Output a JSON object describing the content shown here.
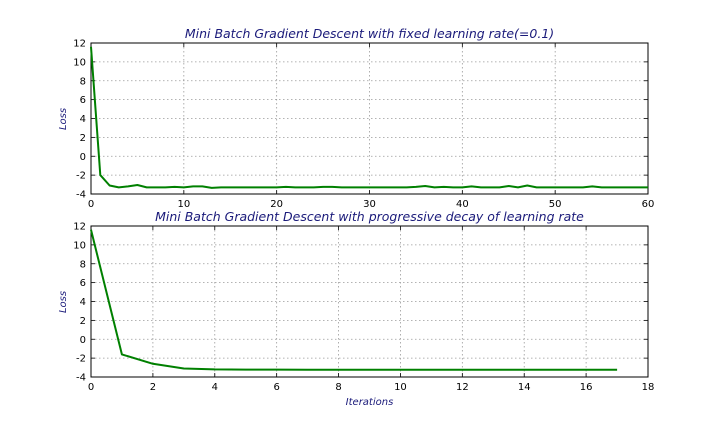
{
  "colors": {
    "line": "#008000",
    "title": "#1a1a7a"
  },
  "chart_data": [
    {
      "type": "line",
      "title": "Mini Batch Gradient Descent with fixed learning rate(=0.1)",
      "xlabel": "",
      "ylabel": "Loss",
      "xlim": [
        0,
        60
      ],
      "ylim": [
        -4,
        12
      ],
      "xticks": [
        0,
        10,
        20,
        30,
        40,
        50,
        60
      ],
      "yticks": [
        12,
        10,
        8,
        6,
        4,
        2,
        0,
        -2,
        -4
      ],
      "grid": true,
      "x": [
        0,
        1,
        2,
        3,
        4,
        5,
        6,
        7,
        8,
        9,
        10,
        11,
        12,
        13,
        14,
        15,
        16,
        17,
        18,
        19,
        20,
        21,
        22,
        23,
        24,
        25,
        26,
        27,
        28,
        29,
        30,
        31,
        32,
        33,
        34,
        35,
        36,
        37,
        38,
        39,
        40,
        41,
        42,
        43,
        44,
        45,
        46,
        47,
        48,
        49,
        50,
        51,
        52,
        53,
        54,
        55,
        56,
        57,
        58,
        59,
        60
      ],
      "series": [
        {
          "values": [
            11.6,
            -2.0,
            -3.1,
            -3.3,
            -3.2,
            -3.05,
            -3.3,
            -3.3,
            -3.3,
            -3.25,
            -3.3,
            -3.2,
            -3.2,
            -3.35,
            -3.3,
            -3.3,
            -3.3,
            -3.3,
            -3.3,
            -3.3,
            -3.3,
            -3.25,
            -3.3,
            -3.3,
            -3.3,
            -3.25,
            -3.25,
            -3.3,
            -3.3,
            -3.3,
            -3.3,
            -3.3,
            -3.3,
            -3.3,
            -3.3,
            -3.25,
            -3.15,
            -3.3,
            -3.25,
            -3.3,
            -3.3,
            -3.2,
            -3.3,
            -3.3,
            -3.3,
            -3.15,
            -3.3,
            -3.1,
            -3.3,
            -3.3,
            -3.3,
            -3.3,
            -3.3,
            -3.3,
            -3.2,
            -3.3,
            -3.3,
            -3.3,
            -3.3,
            -3.3,
            -3.3
          ]
        }
      ]
    },
    {
      "type": "line",
      "title": "Mini Batch Gradient Descent with progressive decay of learning rate",
      "xlabel": "Iterations",
      "ylabel": "Loss",
      "xlim": [
        0,
        18
      ],
      "ylim": [
        -4,
        12
      ],
      "xticks": [
        0,
        2,
        4,
        6,
        8,
        10,
        12,
        14,
        16,
        18
      ],
      "yticks": [
        12,
        10,
        8,
        6,
        4,
        2,
        0,
        -2,
        -4
      ],
      "grid": true,
      "x": [
        0,
        1,
        2,
        3,
        4,
        5,
        6,
        7,
        8,
        9,
        10,
        11,
        12,
        13,
        14,
        15,
        16,
        17
      ],
      "series": [
        {
          "values": [
            11.6,
            -1.6,
            -2.6,
            -3.1,
            -3.2,
            -3.22,
            -3.22,
            -3.24,
            -3.24,
            -3.24,
            -3.24,
            -3.24,
            -3.24,
            -3.24,
            -3.24,
            -3.24,
            -3.24,
            -3.24
          ]
        }
      ]
    }
  ]
}
